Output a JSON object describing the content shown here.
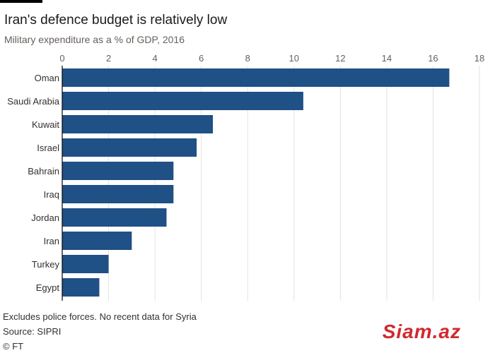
{
  "header": {
    "title": "Iran's defence budget is relatively low",
    "subtitle": "Military expenditure as a % of GDP, 2016"
  },
  "chart_data": {
    "type": "bar",
    "orientation": "horizontal",
    "title": "Iran's defence budget is relatively low",
    "subtitle": "Military expenditure as a % of GDP, 2016",
    "xlabel": "",
    "ylabel": "",
    "categories": [
      "Oman",
      "Saudi Arabia",
      "Kuwait",
      "Israel",
      "Bahrain",
      "Iraq",
      "Jordan",
      "Iran",
      "Turkey",
      "Egypt"
    ],
    "values": [
      16.7,
      10.4,
      6.5,
      5.8,
      4.8,
      4.8,
      4.5,
      3.0,
      2.0,
      1.6
    ],
    "xlim": [
      0,
      18
    ],
    "ticks": [
      0,
      2,
      4,
      6,
      8,
      10,
      12,
      14,
      16,
      18
    ],
    "tick_labels": [
      "0",
      "2",
      "4",
      "6",
      "8",
      "10",
      "12",
      "14",
      "16",
      "18"
    ],
    "axis_position": "top",
    "grid": true,
    "legend": "none",
    "bar_color": "#1f5086",
    "grid_color": "#e6e2dd"
  },
  "footer": {
    "note": "Excludes police forces. No recent data for Syria",
    "source": "Source: SIPRI",
    "credit": "© FT"
  },
  "watermark": {
    "text": "Siam.az"
  }
}
